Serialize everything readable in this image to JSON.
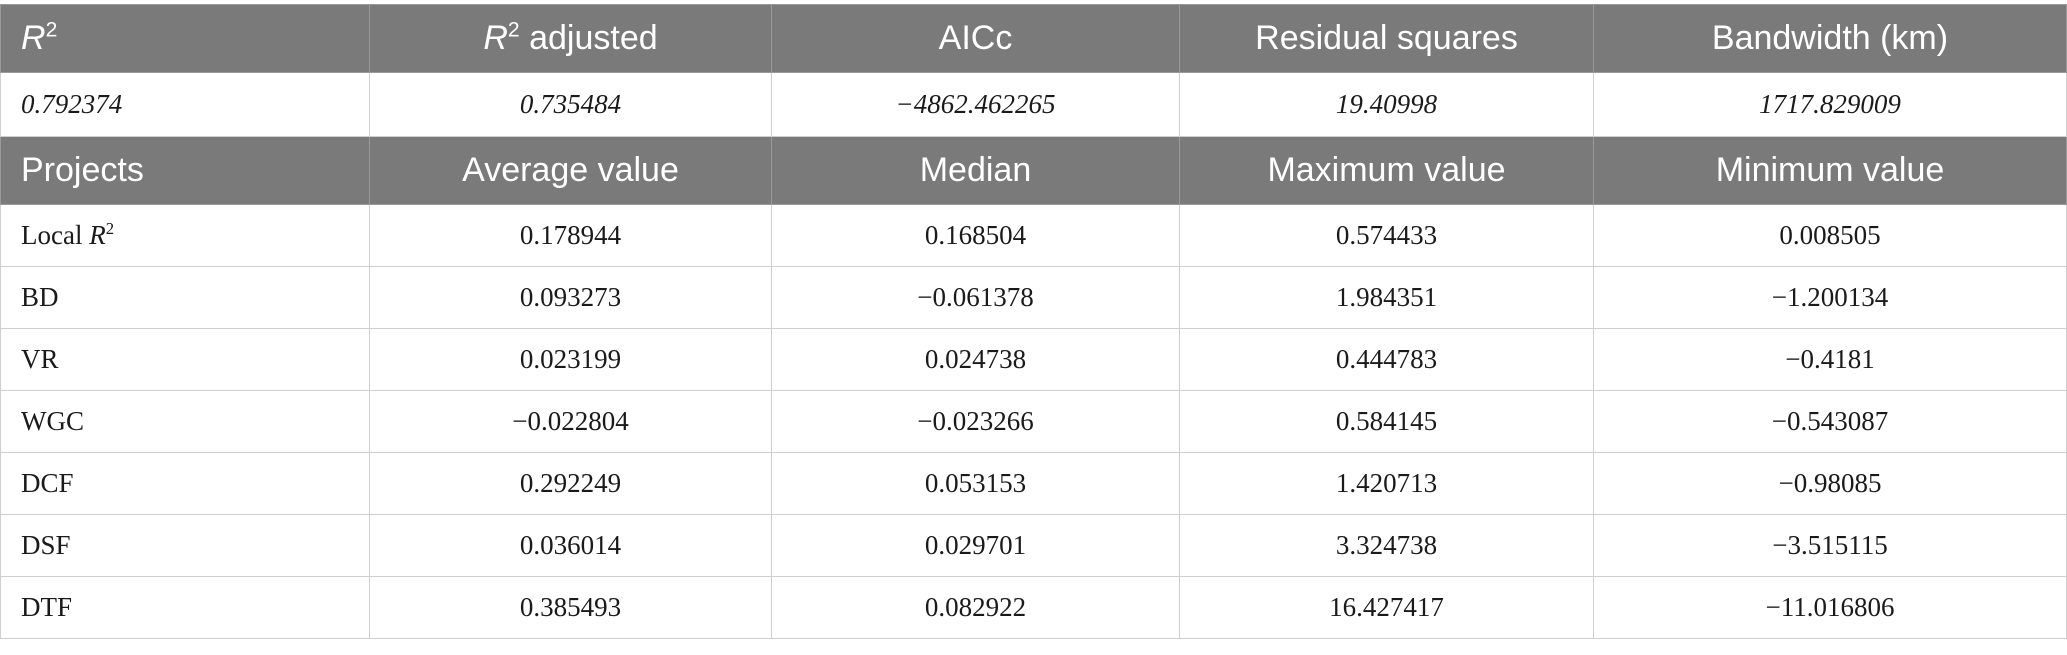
{
  "summary_table": {
    "headers": {
      "r2": {
        "symbol": "R",
        "sup": "2"
      },
      "r2_adjusted": {
        "symbol": "R",
        "sup": "2",
        "suffix": " adjusted"
      },
      "aicc": "AICc",
      "residual_squares": "Residual squares",
      "bandwidth": "Bandwidth (km)"
    },
    "values": [
      "0.792374",
      "0.735484",
      "−4862.462265",
      "19.40998",
      "1717.829009"
    ]
  },
  "stats_table": {
    "headers": [
      "Projects",
      "Average value",
      "Median",
      "Maximum value",
      "Minimum value"
    ],
    "local_r2_label": {
      "prefix": "Local ",
      "symbol": "R",
      "sup": "2"
    },
    "rows": [
      {
        "label": "Local R2",
        "values": [
          "0.178944",
          "0.168504",
          "0.574433",
          "0.008505"
        ]
      },
      {
        "label": "BD",
        "values": [
          "0.093273",
          "−0.061378",
          "1.984351",
          "−1.200134"
        ]
      },
      {
        "label": "VR",
        "values": [
          "0.023199",
          "0.024738",
          "0.444783",
          "−0.4181"
        ]
      },
      {
        "label": "WGC",
        "values": [
          "−0.022804",
          "−0.023266",
          "0.584145",
          "−0.543087"
        ]
      },
      {
        "label": "DCF",
        "values": [
          "0.292249",
          "0.053153",
          "1.420713",
          "−0.98085"
        ]
      },
      {
        "label": "DSF",
        "values": [
          "0.036014",
          "0.029701",
          "3.324738",
          "−3.515115"
        ]
      },
      {
        "label": "DTF",
        "values": [
          "0.385493",
          "0.082922",
          "16.427417",
          "−11.016806"
        ]
      }
    ]
  },
  "colors": {
    "header_bg": "#7a7a7a",
    "header_text": "#ffffff",
    "border": "#cfcfcf",
    "body_text": "#1a1a1a"
  }
}
